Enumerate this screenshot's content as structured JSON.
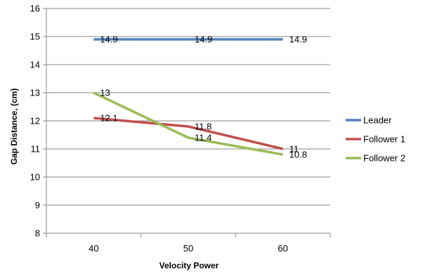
{
  "chart_data": {
    "type": "line",
    "title": "",
    "xlabel": "Velocity Power",
    "ylabel": "Gap Distance, (cm)",
    "x": [
      40,
      50,
      60
    ],
    "ylim": [
      8,
      16
    ],
    "yticks": [
      8,
      9,
      10,
      11,
      12,
      13,
      14,
      15,
      16
    ],
    "grid": "horizontal",
    "legend_position": "right",
    "series": [
      {
        "name": "Leader",
        "color": "#4F81BD",
        "values": [
          14.9,
          14.9,
          14.9
        ],
        "labels": [
          "14.9",
          "14.9",
          "14.9"
        ]
      },
      {
        "name": "Follower 1",
        "color": "#C0504D",
        "values": [
          12.1,
          11.8,
          11.0
        ],
        "labels": [
          "12.1",
          "11.8",
          "11"
        ]
      },
      {
        "name": "Follower 2",
        "color": "#9BBB59",
        "values": [
          13.0,
          11.4,
          10.8
        ],
        "labels": [
          "13",
          "11.4",
          "10.8"
        ]
      }
    ]
  }
}
